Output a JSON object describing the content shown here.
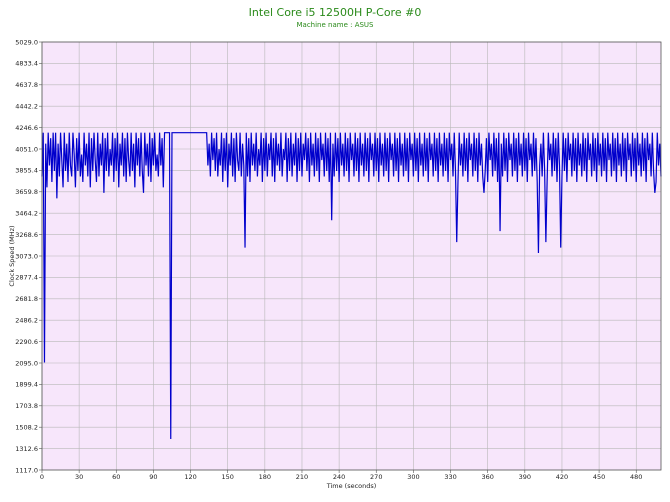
{
  "chart_data": {
    "type": "line",
    "title": "Intel Core i5 12500H P-Core #0",
    "subtitle": "Machine name : ASUS",
    "xlabel": "Time (seconds)",
    "ylabel": "Clock Speed (MHz)",
    "xlim": [
      0,
      500
    ],
    "ylim": [
      1117.0,
      5029.0
    ],
    "x_ticks": [
      0,
      30,
      60,
      90,
      120,
      150,
      180,
      210,
      240,
      270,
      300,
      330,
      360,
      390,
      420,
      450,
      480
    ],
    "y_ticks": [
      "1117.0",
      "1312.6",
      "1508.2",
      "1703.8",
      "1899.4",
      "2095.0",
      "2290.6",
      "2486.2",
      "2681.8",
      "2877.4",
      "3073.0",
      "3268.6",
      "3464.2",
      "3659.8",
      "3855.4",
      "4051.0",
      "4246.6",
      "4442.2",
      "4637.8",
      "4833.4",
      "5029.0"
    ],
    "grid": true,
    "colors": {
      "plot_background": "#f7e6fb",
      "line": "#0000cc",
      "grid": "#b8b8b8",
      "title": "#2a8a1a"
    },
    "series": [
      {
        "values_note": "",
        "x_start": 0,
        "x_step": 1,
        "values": [
          3800,
          4200,
          2100,
          4100,
          3700,
          4200,
          3900,
          4150,
          3750,
          4200,
          3850,
          4200,
          3600,
          4100,
          3800,
          4200,
          3950,
          3700,
          4200,
          3850,
          4100,
          3750,
          4200,
          3900,
          3800,
          4200,
          4000,
          3700,
          4150,
          3850,
          4200,
          3800,
          4000,
          3750,
          4200,
          3900,
          4100,
          3800,
          4200,
          3700,
          4150,
          3850,
          4200,
          3950,
          3750,
          4200,
          3800,
          4100,
          3900,
          4200,
          3650,
          4150,
          3850,
          4200,
          3800,
          4050,
          3900,
          4200,
          3750,
          4150,
          3850,
          4200,
          3700,
          4100,
          3900,
          4200,
          3800,
          4150,
          3750,
          4200,
          3950,
          3800,
          4200,
          3850,
          4100,
          3700,
          4200,
          3900,
          4150,
          3800,
          4200,
          3850,
          3650,
          4200,
          3900,
          4100,
          3800,
          4200,
          3750,
          4150,
          3900,
          4200,
          3850,
          4000,
          3800,
          4200,
          3900,
          4150,
          3700,
          4200,
          4200,
          4200,
          4200,
          4200,
          1400,
          4200,
          4200,
          4200,
          4200,
          4200,
          4200,
          4200,
          4200,
          4200,
          4200,
          4200,
          4200,
          4200,
          4200,
          4200,
          4200,
          4200,
          4200,
          4200,
          4200,
          4200,
          4200,
          4200,
          4200,
          4200,
          4200,
          4200,
          4200,
          4200,
          3900,
          4100,
          3800,
          4200,
          3950,
          4150,
          3850,
          4200,
          3800,
          4050,
          3900,
          4200,
          3750,
          4150,
          3850,
          4200,
          3700,
          4100,
          3900,
          4200,
          3800,
          4150,
          3750,
          4200,
          3950,
          3850,
          4200,
          3800,
          4100,
          3900,
          3150,
          4200,
          3800,
          4150,
          3750,
          4200,
          3900,
          4100,
          3850,
          4200,
          3800,
          4050,
          3900,
          4200,
          3750,
          4150,
          3850,
          4200,
          3800,
          4100,
          3950,
          4200,
          3800,
          4150,
          3750,
          4200,
          3900,
          4100,
          3850,
          4200,
          3800,
          4050,
          3950,
          4200,
          3750,
          4150,
          3850,
          4200,
          3800,
          4100,
          3900,
          4200,
          3750,
          4150,
          3850,
          4200,
          3800,
          4100,
          3950,
          4200,
          3850,
          4150,
          3750,
          4200,
          3900,
          4100,
          3800,
          4200,
          3850,
          4150,
          3750,
          4200,
          3950,
          4100,
          3800,
          4200,
          3850,
          4150,
          3750,
          4200,
          3400,
          4100,
          3800,
          4200,
          3850,
          4150,
          3750,
          4200,
          3900,
          4100,
          3800,
          4200,
          3850,
          4150,
          3750,
          4200,
          3950,
          4100,
          3800,
          4200,
          3850,
          4150,
          3750,
          4200,
          3900,
          4100,
          3800,
          4200,
          3850,
          4150,
          3750,
          4200,
          3950,
          4100,
          3800,
          4200,
          3850,
          4150,
          3750,
          4200,
          3900,
          4100,
          3800,
          4200,
          3850,
          4150,
          3750,
          4200,
          3950,
          4100,
          3800,
          4200,
          3850,
          4150,
          3750,
          4200,
          3900,
          4100,
          3800,
          4200,
          3850,
          4150,
          3750,
          4200,
          3950,
          4100,
          3800,
          4200,
          3850,
          4150,
          3750,
          4200,
          3900,
          4100,
          3800,
          4200,
          3850,
          4150,
          3750,
          4200,
          3950,
          4100,
          3800,
          4200,
          3850,
          4150,
          3750,
          4200,
          3900,
          4100,
          3800,
          4200,
          3850,
          4150,
          3750,
          4200,
          3950,
          4100,
          3800,
          4200,
          3850,
          3200,
          3750,
          4200,
          3900,
          4100,
          3800,
          4200,
          3850,
          4150,
          3750,
          4200,
          3950,
          4100,
          3800,
          4200,
          3850,
          4150,
          3750,
          4200,
          3900,
          4100,
          3800,
          3650,
          3850,
          4150,
          3750,
          4200,
          3950,
          4100,
          3800,
          4200,
          3850,
          4150,
          3750,
          4200,
          3300,
          4100,
          3800,
          4200,
          3850,
          4150,
          3750,
          4200,
          3950,
          4100,
          3800,
          4200,
          3850,
          4150,
          3750,
          4200,
          3900,
          4100,
          3800,
          4200,
          3850,
          4150,
          3750,
          4200,
          3950,
          4100,
          3800,
          4200,
          3850,
          4150,
          3750,
          3100,
          3900,
          4100,
          3800,
          4200,
          3850,
          3200,
          3750,
          4200,
          3950,
          4100,
          3800,
          4200,
          3850,
          4150,
          3750,
          4200,
          3900,
          3150,
          3800,
          4200,
          3850,
          4150,
          3750,
          4200,
          3950,
          4100,
          3800,
          4200,
          3850,
          4150,
          3750,
          4200,
          3900,
          4100,
          3800,
          4200,
          3850,
          4150,
          3750,
          4200,
          3950,
          4100,
          3800,
          4200,
          3850,
          4150,
          3750,
          4200,
          3900,
          4100,
          3800,
          4200,
          3850,
          4150,
          3750,
          4200,
          3950,
          4100,
          3800,
          4200,
          3850,
          4150,
          3750,
          4200,
          3900,
          4100,
          3800,
          4200,
          3850,
          4150,
          3750,
          4200,
          3950,
          4100,
          3800,
          4200,
          3850,
          4150,
          3750,
          4200,
          3900,
          4100,
          3800,
          4200,
          3850,
          4150,
          3750,
          4200,
          3950,
          4100,
          3800,
          4200,
          3850,
          3650,
          3750,
          4200,
          3900,
          4100,
          3800
        ]
      }
    ]
  }
}
